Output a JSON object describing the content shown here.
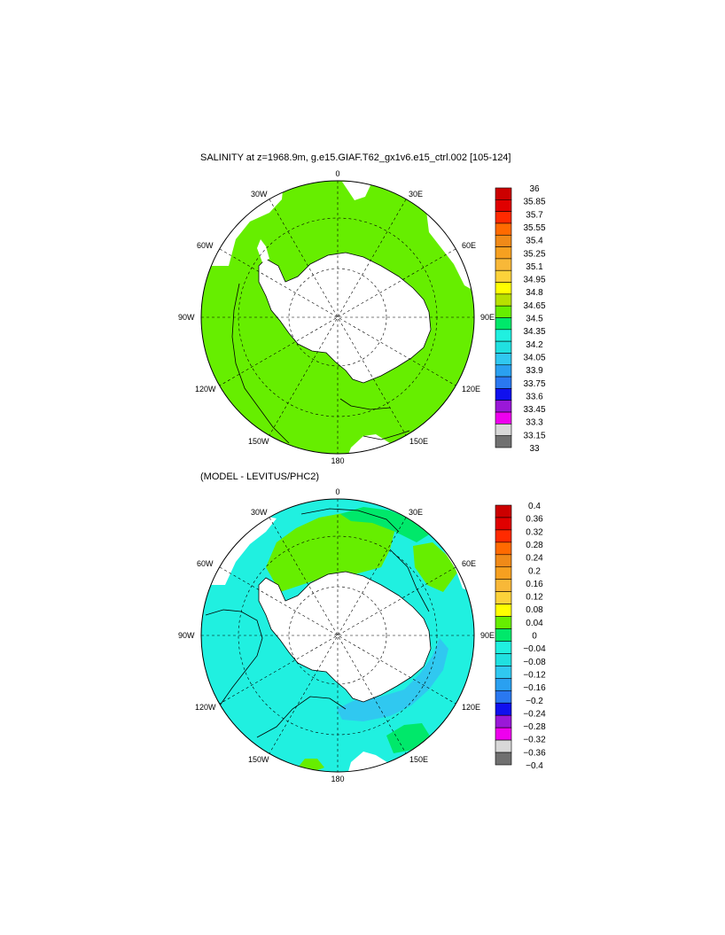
{
  "panels": [
    {
      "id": "top",
      "title": "SALINITY at z=1968.9m, g.e15.GIAF.T62_gx1v6.e15_ctrl.002 [105-124]",
      "lon_labels": [
        "0",
        "30E",
        "60E",
        "90E",
        "120E",
        "150E",
        "180",
        "150W",
        "120W",
        "90W",
        "60W",
        "30W"
      ],
      "colorbar": {
        "labels": [
          "36",
          "35.85",
          "35.7",
          "35.55",
          "35.4",
          "35.25",
          "35.1",
          "34.95",
          "34.8",
          "34.65",
          "34.5",
          "34.35",
          "34.2",
          "34.05",
          "33.9",
          "33.75",
          "33.6",
          "33.45",
          "33.3",
          "33.15",
          "33"
        ],
        "colors": [
          "#cc0000",
          "#e00000",
          "#ff2a00",
          "#ff6a00",
          "#f08a18",
          "#f6a020",
          "#f8b838",
          "#fcd23a",
          "#ffff00",
          "#b8e000",
          "#66ee00",
          "#00e86a",
          "#20f0e0",
          "#20e0e0",
          "#30c8f0",
          "#2aa0f0",
          "#2a78f0",
          "#1010ee",
          "#9a18d8",
          "#ee00ee",
          "#d8d8d8",
          "#707070"
        ]
      },
      "field_colors": {
        "ocean": "#66ee00",
        "land": "#ffffff"
      }
    },
    {
      "id": "bottom",
      "title": "(MODEL - LEVITUS/PHC2)",
      "lon_labels": [
        "0",
        "30E",
        "60E",
        "90E",
        "120E",
        "150E",
        "180",
        "150W",
        "120W",
        "90W",
        "60W",
        "30W"
      ],
      "colorbar": {
        "labels": [
          "0.4",
          "0.36",
          "0.32",
          "0.28",
          "0.24",
          "0.2",
          "0.16",
          "0.12",
          "0.08",
          "0.04",
          "0",
          "−0.04",
          "−0.08",
          "−0.12",
          "−0.16",
          "−0.2",
          "−0.24",
          "−0.28",
          "−0.32",
          "−0.36",
          "−0.4"
        ],
        "colors": [
          "#cc0000",
          "#e00000",
          "#ff2a00",
          "#ff6a00",
          "#f08a18",
          "#f6a020",
          "#f8b838",
          "#fcd23a",
          "#ffff00",
          "#66ee00",
          "#00e86a",
          "#20f0e0",
          "#20e0e0",
          "#30c8f0",
          "#2aa0f0",
          "#2a78f0",
          "#1010ee",
          "#9a18d8",
          "#ee00ee",
          "#d8d8d8",
          "#707070"
        ]
      },
      "field_colors": {
        "near_zero": "#20f0e0",
        "positive": "#66ee00",
        "zero_band": "#00e86a",
        "negative": "#30c8f0",
        "land": "#ffffff"
      }
    }
  ]
}
